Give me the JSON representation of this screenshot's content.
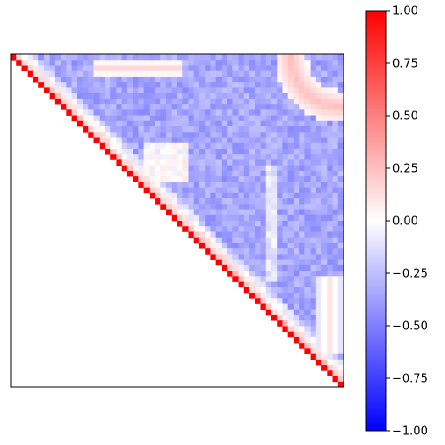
{
  "chart_data": {
    "type": "heatmap",
    "title": "",
    "xlabel": "",
    "ylabel": "",
    "layout": "upper-triangle",
    "n": 60,
    "diagonal_value": 1.0,
    "colormap": "bwr",
    "colors": {
      "low": "#0000ff",
      "mid": "#ffffff",
      "high": "#ff0000"
    },
    "vmin": -1.0,
    "vmax": 1.0,
    "axes_ticks": false,
    "background_value": -0.35,
    "near_diagonal_band": {
      "offset_range": [
        1,
        4
      ],
      "value": 0.2
    },
    "features": [
      {
        "region": "top-right corner arc",
        "value": 0.25
      },
      {
        "region": "upper-middle ridge",
        "value": 0.15
      },
      {
        "region": "lower-right vertical stripe",
        "value": 0.1
      }
    ],
    "colorbar": {
      "ticks": [
        -1.0,
        -0.75,
        -0.5,
        -0.25,
        0.0,
        0.25,
        0.5,
        0.75,
        1.0
      ],
      "tick_labels": [
        "−1.00",
        "−0.75",
        "−0.50",
        "−0.25",
        "0.00",
        "0.25",
        "0.50",
        "0.75",
        "1.00"
      ]
    }
  }
}
